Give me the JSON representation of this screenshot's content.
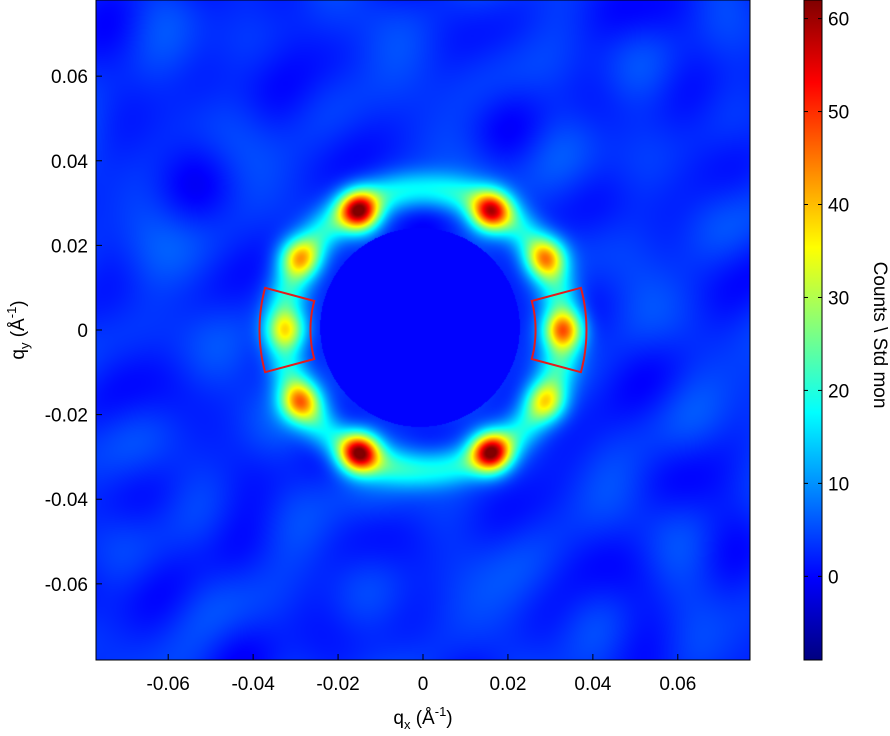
{
  "chart_data": {
    "type": "heatmap",
    "x": {
      "ticks": [
        -0.06,
        -0.04,
        -0.02,
        0,
        0.02,
        0.04,
        0.06
      ],
      "tick_labels": [
        "-0.06",
        "-0.04",
        "-0.02",
        "0",
        "0.02",
        "0.04",
        "0.06"
      ],
      "range": [
        -0.077,
        0.077
      ],
      "label_main": "q",
      "label_sub": "x",
      "label_unit_open": " (Å",
      "label_unit_sup": "-1",
      "label_unit_close": ")"
    },
    "y": {
      "ticks": [
        -0.06,
        -0.04,
        -0.02,
        0,
        0.02,
        0.04,
        0.06
      ],
      "tick_labels": [
        "-0.06",
        "-0.04",
        "-0.02",
        "0",
        "0.02",
        "0.04",
        "0.06"
      ],
      "range": [
        -0.078,
        0.078
      ],
      "label_main": "q",
      "label_sub": "y",
      "label_unit_open": " (Å",
      "label_unit_sup": "-1",
      "label_unit_close": ")"
    },
    "colorbar": {
      "range": [
        -9,
        62
      ],
      "ticks": [
        0,
        10,
        20,
        30,
        40,
        50,
        60
      ],
      "tick_labels": [
        "0",
        "10",
        "20",
        "30",
        "40",
        "50",
        "60"
      ],
      "label": "Counts \\ Std mon",
      "colormap": "jet",
      "placement": "right"
    },
    "background_level": 3,
    "beamstop": {
      "center_x": -0.0007,
      "center_y": 0.0006,
      "radius": 0.0235,
      "value": 0
    },
    "ring": {
      "radius": 0.033,
      "width": 0.0045,
      "level": 16
    },
    "peaks": [
      {
        "x": -0.015,
        "y": 0.028,
        "value": 62
      },
      {
        "x": 0.016,
        "y": 0.028,
        "value": 55
      },
      {
        "x": -0.029,
        "y": 0.017,
        "value": 40
      },
      {
        "x": 0.029,
        "y": 0.017,
        "value": 42
      },
      {
        "x": -0.032,
        "y": 0.0,
        "value": 36
      },
      {
        "x": 0.033,
        "y": 0.0,
        "value": 45
      },
      {
        "x": -0.029,
        "y": -0.017,
        "value": 42
      },
      {
        "x": 0.029,
        "y": -0.017,
        "value": 36
      },
      {
        "x": -0.015,
        "y": -0.029,
        "value": 62
      },
      {
        "x": 0.016,
        "y": -0.029,
        "value": 62
      }
    ],
    "sectors": [
      {
        "name": "left-sector",
        "angle_from": 165,
        "angle_to": 195,
        "r_inner": 0.0265,
        "r_outer": 0.0385
      },
      {
        "name": "right-sector",
        "angle_from": -15,
        "angle_to": 15,
        "r_inner": 0.0265,
        "r_outer": 0.0385
      }
    ],
    "sector_color": "#e41a1c",
    "grid": false
  }
}
